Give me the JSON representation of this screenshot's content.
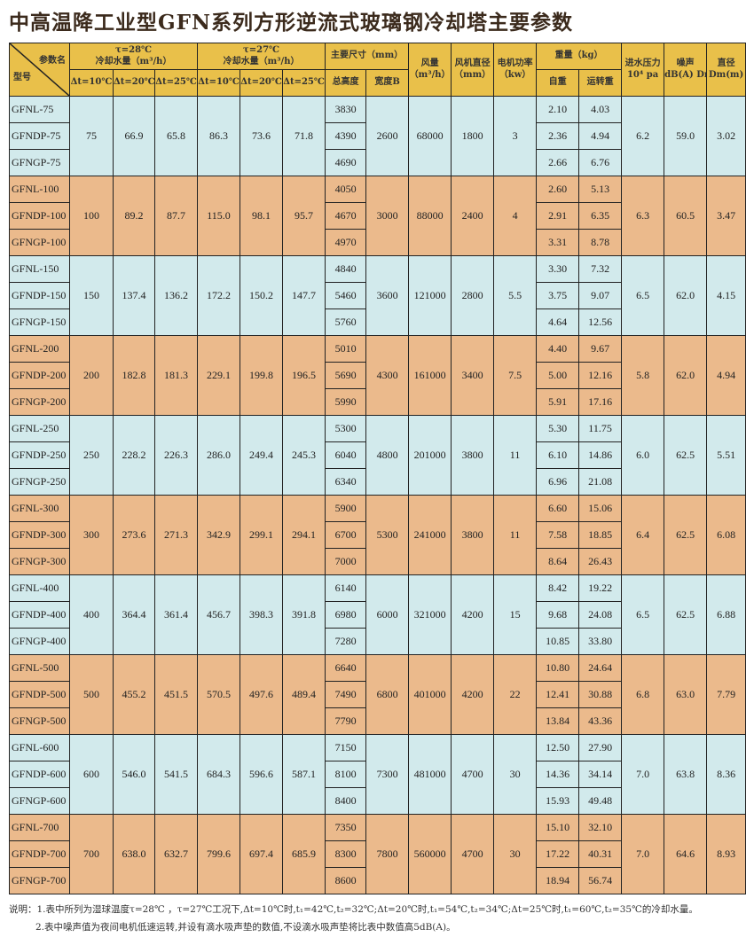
{
  "title": "中高温降工业型GFN系列方形逆流式玻璃钢冷却塔主要参数",
  "header": {
    "param_name": "参数名",
    "model": "型号",
    "tau28": "τ=28℃",
    "tau27": "τ=27℃",
    "cooling_water": "冷却水量（m³/h）",
    "dt10": "Δt=10℃",
    "dt20": "Δt=20℃",
    "dt25": "Δt=25℃",
    "main_dims": "主要尺寸（mm）",
    "total_height": "总高度",
    "width": "宽度B",
    "air_volume": "风量",
    "air_volume_unit": "（m³/h）",
    "fan_dia": "风机直径",
    "fan_dia_unit": "（mm）",
    "motor_power": "电机功率",
    "motor_power_unit": "（kw）",
    "weight": "重量（kg）",
    "self_weight": "自重",
    "running_weight": "运转重",
    "inlet_pressure": "进水压力",
    "inlet_pressure_unit": "10⁴ pa",
    "noise": "噪声",
    "noise_unit": "dB(A) Dm",
    "diameter": "直径",
    "diameter_unit": "Dm(m)"
  },
  "groups": [
    {
      "types": [
        "GFNL-75",
        "GFNDP-75",
        "GFNGP-75"
      ],
      "t28": [
        "75",
        "66.9",
        "65.8"
      ],
      "t27": [
        "86.3",
        "73.6",
        "71.8"
      ],
      "heights": [
        "3830",
        "4390",
        "4690"
      ],
      "width": "2600",
      "air": "68000",
      "fan": "1800",
      "power": "3",
      "self": [
        "2.10",
        "2.36",
        "2.66"
      ],
      "run": [
        "4.03",
        "4.94",
        "6.76"
      ],
      "pressure": "6.2",
      "noise": "59.0",
      "dia": "3.02",
      "color": "#d2eaec"
    },
    {
      "types": [
        "GFNL-100",
        "GFNDP-100",
        "GFNGP-100"
      ],
      "t28": [
        "100",
        "89.2",
        "87.7"
      ],
      "t27": [
        "115.0",
        "98.1",
        "95.7"
      ],
      "heights": [
        "4050",
        "4670",
        "4970"
      ],
      "width": "3000",
      "air": "88000",
      "fan": "2400",
      "power": "4",
      "self": [
        "2.60",
        "2.91",
        "3.31"
      ],
      "run": [
        "5.13",
        "6.35",
        "8.78"
      ],
      "pressure": "6.3",
      "noise": "60.5",
      "dia": "3.47",
      "color": "#ebba8c"
    },
    {
      "types": [
        "GFNL-150",
        "GFNDP-150",
        "GFNGP-150"
      ],
      "t28": [
        "150",
        "137.4",
        "136.2"
      ],
      "t27": [
        "172.2",
        "150.2",
        "147.7"
      ],
      "heights": [
        "4840",
        "5460",
        "5760"
      ],
      "width": "3600",
      "air": "121000",
      "fan": "2800",
      "power": "5.5",
      "self": [
        "3.30",
        "3.75",
        "4.64"
      ],
      "run": [
        "7.32",
        "9.07",
        "12.56"
      ],
      "pressure": "6.5",
      "noise": "62.0",
      "dia": "4.15",
      "color": "#d2eaec"
    },
    {
      "types": [
        "GFNL-200",
        "GFNDP-200",
        "GFNGP-200"
      ],
      "t28": [
        "200",
        "182.8",
        "181.3"
      ],
      "t27": [
        "229.1",
        "199.8",
        "196.5"
      ],
      "heights": [
        "5010",
        "5690",
        "5990"
      ],
      "width": "4300",
      "air": "161000",
      "fan": "3400",
      "power": "7.5",
      "self": [
        "4.40",
        "5.00",
        "5.91"
      ],
      "run": [
        "9.67",
        "12.16",
        "17.16"
      ],
      "pressure": "5.8",
      "noise": "62.0",
      "dia": "4.94",
      "color": "#ebba8c"
    },
    {
      "types": [
        "GFNL-250",
        "GFNDP-250",
        "GFNGP-250"
      ],
      "t28": [
        "250",
        "228.2",
        "226.3"
      ],
      "t27": [
        "286.0",
        "249.4",
        "245.3"
      ],
      "heights": [
        "5300",
        "6040",
        "6340"
      ],
      "width": "4800",
      "air": "201000",
      "fan": "3800",
      "power": "11",
      "self": [
        "5.30",
        "6.10",
        "6.96"
      ],
      "run": [
        "11.75",
        "14.86",
        "21.08"
      ],
      "pressure": "6.0",
      "noise": "62.5",
      "dia": "5.51",
      "color": "#d2eaec"
    },
    {
      "types": [
        "GFNL-300",
        "GFNDP-300",
        "GFNGP-300"
      ],
      "t28": [
        "300",
        "273.6",
        "271.3"
      ],
      "t27": [
        "342.9",
        "299.1",
        "294.1"
      ],
      "heights": [
        "5900",
        "6700",
        "7000"
      ],
      "width": "5300",
      "air": "241000",
      "fan": "3800",
      "power": "11",
      "self": [
        "6.60",
        "7.58",
        "8.64"
      ],
      "run": [
        "15.06",
        "18.85",
        "26.43"
      ],
      "pressure": "6.4",
      "noise": "62.5",
      "dia": "6.08",
      "color": "#ebba8c"
    },
    {
      "types": [
        "GFNL-400",
        "GFNDP-400",
        "GFNGP-400"
      ],
      "t28": [
        "400",
        "364.4",
        "361.4"
      ],
      "t27": [
        "456.7",
        "398.3",
        "391.8"
      ],
      "heights": [
        "6140",
        "6980",
        "7280"
      ],
      "width": "6000",
      "air": "321000",
      "fan": "4200",
      "power": "15",
      "self": [
        "8.42",
        "9.68",
        "10.85"
      ],
      "run": [
        "19.22",
        "24.08",
        "33.80"
      ],
      "pressure": "6.5",
      "noise": "62.5",
      "dia": "6.88",
      "color": "#d2eaec"
    },
    {
      "types": [
        "GFNL-500",
        "GFNDP-500",
        "GFNGP-500"
      ],
      "t28": [
        "500",
        "455.2",
        "451.5"
      ],
      "t27": [
        "570.5",
        "497.6",
        "489.4"
      ],
      "heights": [
        "6640",
        "7490",
        "7790"
      ],
      "width": "6800",
      "air": "401000",
      "fan": "4200",
      "power": "22",
      "self": [
        "10.80",
        "12.41",
        "13.84"
      ],
      "run": [
        "24.64",
        "30.88",
        "43.36"
      ],
      "pressure": "6.8",
      "noise": "63.0",
      "dia": "7.79",
      "color": "#ebba8c"
    },
    {
      "types": [
        "GFNL-600",
        "GFNDP-600",
        "GFNGP-600"
      ],
      "t28": [
        "600",
        "546.0",
        "541.5"
      ],
      "t27": [
        "684.3",
        "596.6",
        "587.1"
      ],
      "heights": [
        "7150",
        "8100",
        "8400"
      ],
      "width": "7300",
      "air": "481000",
      "fan": "4700",
      "power": "30",
      "self": [
        "12.50",
        "14.36",
        "15.93"
      ],
      "run": [
        "27.90",
        "34.14",
        "49.48"
      ],
      "pressure": "7.0",
      "noise": "63.8",
      "dia": "8.36",
      "color": "#d2eaec"
    },
    {
      "types": [
        "GFNL-700",
        "GFNDP-700",
        "GFNGP-700"
      ],
      "t28": [
        "700",
        "638.0",
        "632.7"
      ],
      "t27": [
        "799.6",
        "697.4",
        "685.9"
      ],
      "heights": [
        "7350",
        "8300",
        "8600"
      ],
      "width": "7800",
      "air": "560000",
      "fan": "4700",
      "power": "30",
      "self": [
        "15.10",
        "17.22",
        "18.94"
      ],
      "run": [
        "32.10",
        "40.31",
        "56.74"
      ],
      "pressure": "7.0",
      "noise": "64.6",
      "dia": "8.93",
      "color": "#ebba8c"
    }
  ],
  "notes": {
    "label": "说明：",
    "note1": "1.表中所列为湿球温度τ=28℃ ，τ=27℃工况下,Δt=10℃时,t₁=42℃,t₂=32℃;Δt=20℃时,t₁=54℃,t₂=34℃;Δt=25℃时,t₁=60℃,t₂=35℃的冷却水量。",
    "note2": "2.表中噪声值为夜间电机低速运转,并设有滴水吸声垫的数值,不设滴水吸声垫将比表中数值高5dB(A)。"
  }
}
